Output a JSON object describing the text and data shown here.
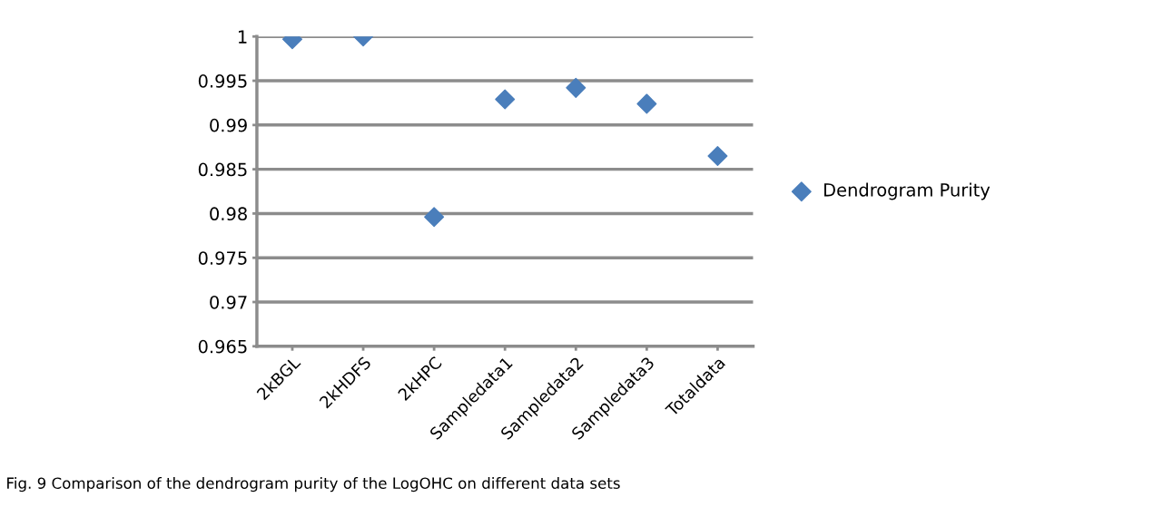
{
  "chart_data": {
    "type": "scatter",
    "categories": [
      "2kBGL",
      "2kHDFS",
      "2kHPC",
      "Sampledata1",
      "Sampledata2",
      "Sampledata3",
      "Totaldata"
    ],
    "series": [
      {
        "name": "Dendrogram Purity",
        "color": "#4a7ebb",
        "values": [
          0.9997,
          1.0,
          0.9796,
          0.9929,
          0.9942,
          0.9924,
          0.9865
        ]
      }
    ],
    "ylim": [
      0.965,
      1
    ],
    "yticks": [
      0.965,
      0.97,
      0.975,
      0.98,
      0.985,
      0.99,
      0.995,
      1
    ],
    "grid": "y",
    "legend": "right",
    "marker": "diamond",
    "annotations": [
      "Fig. 9 Comparison of the dendrogram purity of the LogOHC on different data sets"
    ]
  }
}
